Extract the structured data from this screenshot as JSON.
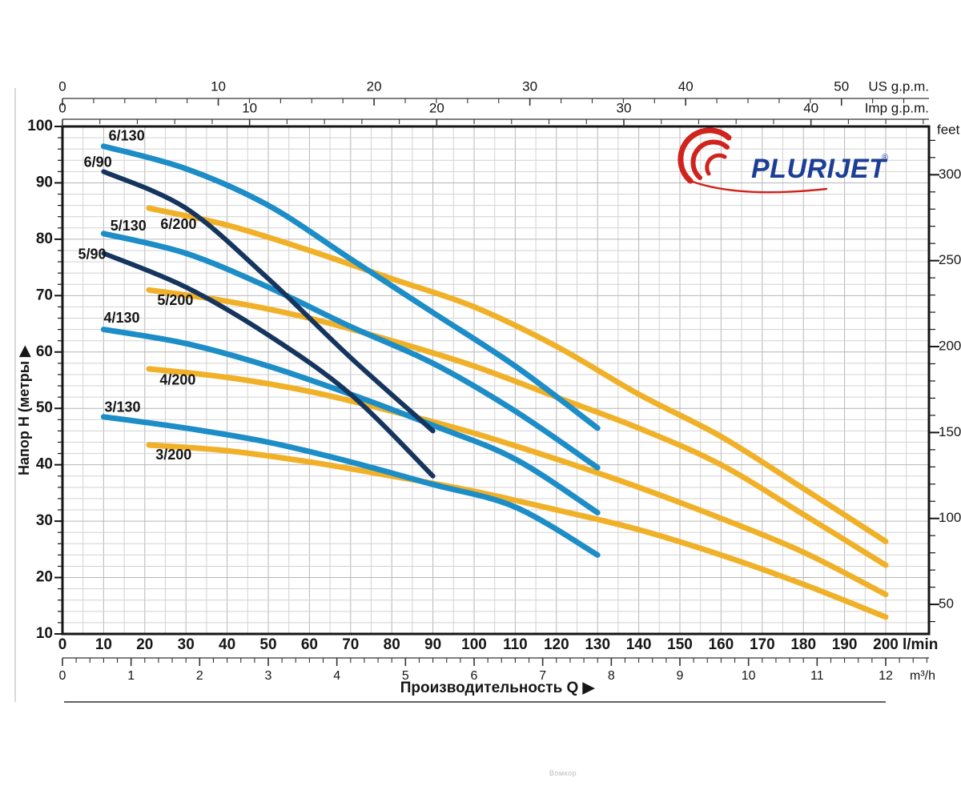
{
  "brand": {
    "name": "PLURIJET",
    "registered": "®",
    "text_color": "#1c3e96",
    "swoosh_color": "#d0231d"
  },
  "watermark": "Вомкор",
  "axes": {
    "x_bottom_lmin": {
      "unit": "l/min",
      "min": 0,
      "max": 200,
      "label_step": 10
    },
    "x_bottom_m3h": {
      "unit": "m³/h",
      "min": 0,
      "max": 12,
      "label_step": 1,
      "minor_step": 0.2,
      "lmin_per_unit": 16.6667
    },
    "x_top_usgpm": {
      "unit": "US g.p.m.",
      "min": 0,
      "max": 50,
      "label_step": 10,
      "minor_step": 2,
      "lmin_per_unit": 3.785
    },
    "x_top_impgpm": {
      "unit": "Imp g.p.m.",
      "min": 0,
      "max": 40,
      "label_step": 10,
      "minor_step": 2,
      "lmin_per_unit": 4.546
    },
    "y_left_m": {
      "title": "Напор H (метры",
      "arrow": "▶",
      "min": 10,
      "max": 100,
      "label_step": 10,
      "minor_step": 2
    },
    "y_right_feet": {
      "unit": "feet",
      "label_step": 50,
      "minor_step": 10,
      "m_per_foot": 0.3048
    },
    "x_title": "Производительность Q",
    "x_title_arrow": "▶"
  },
  "chart_data": {
    "type": "line",
    "xlabel": "Производительность Q (l/min, m³/h, US g.p.m., Imp g.p.m.)",
    "ylabel": "Напор H (метры / feet)",
    "xlim_lmin": [
      0,
      200
    ],
    "ylim_m": [
      10,
      100
    ],
    "grid": {
      "x_step_lmin": 5,
      "y_step_m": 2,
      "color_light": "#d2d2d2",
      "color_dark": "#b6b6b6"
    },
    "colors": {
      "blue": "#1d8dc7",
      "navy": "#15355e",
      "yellow": "#f0b128"
    },
    "series": [
      {
        "name": "6/200",
        "group": "200",
        "color": "yellow",
        "label_at": [
          28.2,
          82.5
        ],
        "points": [
          [
            21,
            85.5
          ],
          [
            40,
            82.5
          ],
          [
            60,
            78
          ],
          [
            80,
            73
          ],
          [
            100,
            68
          ],
          [
            120,
            61
          ],
          [
            140,
            52.5
          ],
          [
            160,
            45
          ],
          [
            180,
            35.8
          ],
          [
            200,
            26.4
          ]
        ]
      },
      {
        "name": "5/200",
        "group": "200",
        "color": "yellow",
        "label_at": [
          27.4,
          69.0
        ],
        "points": [
          [
            21,
            71
          ],
          [
            40,
            69
          ],
          [
            60,
            66
          ],
          [
            80,
            62
          ],
          [
            100,
            57.5
          ],
          [
            120,
            52
          ],
          [
            140,
            46.5
          ],
          [
            160,
            40
          ],
          [
            180,
            31.2
          ],
          [
            200,
            22.2
          ]
        ]
      },
      {
        "name": "4/200",
        "group": "200",
        "color": "yellow",
        "label_at": [
          28.0,
          54.9
        ],
        "points": [
          [
            21,
            57
          ],
          [
            40,
            55.5
          ],
          [
            60,
            53
          ],
          [
            80,
            49.5
          ],
          [
            100,
            45.6
          ],
          [
            120,
            41
          ],
          [
            140,
            36
          ],
          [
            160,
            30.5
          ],
          [
            180,
            24.5
          ],
          [
            200,
            17
          ]
        ]
      },
      {
        "name": "3/200",
        "group": "200",
        "color": "yellow",
        "label_at": [
          27.0,
          41.6
        ],
        "points": [
          [
            21,
            43.5
          ],
          [
            40,
            42.5
          ],
          [
            60,
            40.5
          ],
          [
            80,
            38
          ],
          [
            100,
            35.3
          ],
          [
            120,
            32
          ],
          [
            140,
            28.5
          ],
          [
            160,
            24
          ],
          [
            180,
            18.8
          ],
          [
            200,
            13
          ]
        ]
      },
      {
        "name": "6/130",
        "group": "130",
        "color": "blue",
        "label_at": [
          15.6,
          98.2
        ],
        "points": [
          [
            10,
            96.5
          ],
          [
            30,
            92.5
          ],
          [
            50,
            86
          ],
          [
            70,
            76.5
          ],
          [
            90,
            67
          ],
          [
            110,
            57.5
          ],
          [
            130,
            46.5
          ]
        ]
      },
      {
        "name": "5/130",
        "group": "130",
        "color": "blue",
        "label_at": [
          16.0,
          82.2
        ],
        "points": [
          [
            10,
            81
          ],
          [
            30,
            77.5
          ],
          [
            50,
            71.5
          ],
          [
            70,
            64.5
          ],
          [
            90,
            58
          ],
          [
            110,
            49.5
          ],
          [
            130,
            39.5
          ]
        ]
      },
      {
        "name": "4/130",
        "group": "130",
        "color": "blue",
        "label_at": [
          14.4,
          65.9
        ],
        "points": [
          [
            10,
            64
          ],
          [
            30,
            61.5
          ],
          [
            50,
            57.5
          ],
          [
            70,
            52.5
          ],
          [
            90,
            47
          ],
          [
            110,
            41
          ],
          [
            130,
            31.5
          ]
        ]
      },
      {
        "name": "3/130",
        "group": "130",
        "color": "blue",
        "label_at": [
          14.6,
          50.1
        ],
        "points": [
          [
            10,
            48.5
          ],
          [
            30,
            46.5
          ],
          [
            50,
            44
          ],
          [
            70,
            40.5
          ],
          [
            90,
            36.5
          ],
          [
            110,
            32.5
          ],
          [
            130,
            24
          ]
        ]
      },
      {
        "name": "6/90",
        "group": "90",
        "color": "navy",
        "label_at": [
          8.6,
          93.5
        ],
        "points": [
          [
            10,
            92
          ],
          [
            30,
            85.5
          ],
          [
            50,
            73
          ],
          [
            70,
            59
          ],
          [
            90,
            46
          ]
        ]
      },
      {
        "name": "5/90",
        "group": "90",
        "color": "navy",
        "label_at": [
          7.2,
          77.2
        ],
        "points": [
          [
            10,
            77.5
          ],
          [
            30,
            71.5
          ],
          [
            50,
            63
          ],
          [
            70,
            52.5
          ],
          [
            90,
            38
          ]
        ]
      }
    ]
  }
}
